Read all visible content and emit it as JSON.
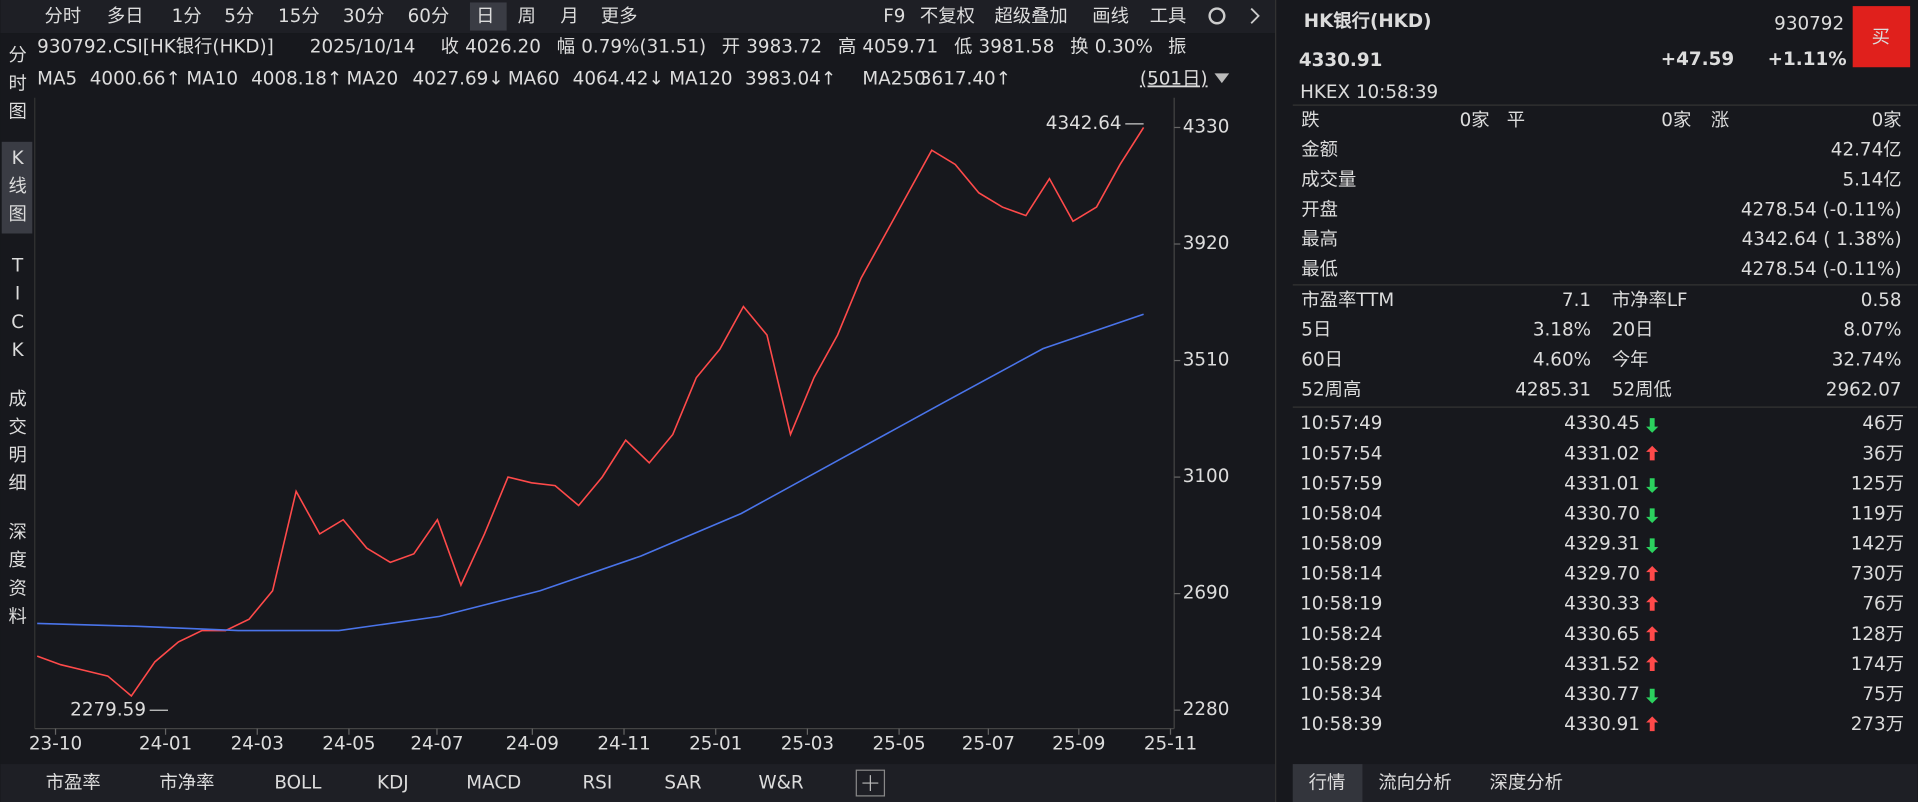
{
  "toolbar": {
    "periods": [
      "分时",
      "多日",
      "1分",
      "5分",
      "15分",
      "30分",
      "60分",
      "日",
      "周",
      "月",
      "更多"
    ],
    "active": "日",
    "tools": [
      "F9",
      "不复权",
      "超级叠加",
      "画线",
      "工具"
    ]
  },
  "side_tabs": [
    "分时图",
    "K线图",
    "TICK",
    "成交明细",
    "深度资料"
  ],
  "info_line": {
    "code": "930792.CSI[HK银行(HKD)]",
    "date": "2025/10/14",
    "items": [
      {
        "label": "收",
        "value": "4026.20",
        "color": "#ff4a4a"
      },
      {
        "label": "幅",
        "value": "0.79%(31.51)",
        "color": "#ff4a4a"
      },
      {
        "label": "开",
        "value": "3983.72",
        "color": "#2bd15e"
      },
      {
        "label": "高",
        "value": "4059.71",
        "color": "#ff4a4a"
      },
      {
        "label": "低",
        "value": "3981.58",
        "color": "#2bd15e"
      },
      {
        "label": "换",
        "value": "0.30%",
        "color": "#e6e6e6"
      },
      {
        "label": "振"
      }
    ]
  },
  "ma_legend": {
    "items": [
      {
        "name": "MA5",
        "value": "4000.66↑",
        "color": "#ff9a1e"
      },
      {
        "name": "MA10",
        "value": "4008.18↑",
        "color": "#e8dc1a"
      },
      {
        "name": "MA20",
        "value": "4027.69↓",
        "color": "#d24ad8"
      },
      {
        "name": "MA60",
        "value": "4064.42↓",
        "color": "#2fb24e"
      },
      {
        "name": "MA120",
        "value": "3983.04↑",
        "color": "#3cc9dc"
      },
      {
        "name": "MA250",
        "value": "3617.40↑",
        "color": "#4a74ea"
      }
    ],
    "days": "(501日)"
  },
  "chart_data": {
    "type": "line",
    "ylim": [
      2215,
      4400
    ],
    "yticks": [
      2280,
      2690,
      3100,
      3510,
      3920,
      4330
    ],
    "x_labels": [
      "23-10",
      "24-01",
      "24-03",
      "24-05",
      "24-07",
      "24-09",
      "24-11",
      "25-01",
      "25-03",
      "25-05",
      "25-07",
      "25-09",
      "25-11"
    ],
    "high_label": 4342.64,
    "low_label": 2279.59,
    "series": [
      {
        "color": "#ff4a4a",
        "values": [
          2470,
          2440,
          2420,
          2400,
          2330,
          2450,
          2520,
          2560,
          2560,
          2600,
          2700,
          3050,
          2900,
          2950,
          2850,
          2800,
          2830,
          2950,
          2720,
          2900,
          3100,
          3080,
          3070,
          3000,
          3100,
          3230,
          3150,
          3250,
          3450,
          3550,
          3700,
          3600,
          3250,
          3450,
          3600,
          3800,
          3950,
          4100,
          4250,
          4200,
          4100,
          4050,
          4020,
          4150,
          4000,
          4050,
          4200,
          4330
        ]
      },
      {
        "color": "#4a74ea",
        "values": [
          2585,
          2575,
          2560,
          2560,
          2610,
          2700,
          2822,
          2972,
          3166,
          3360,
          3552,
          3673
        ]
      }
    ]
  },
  "indicator_tabs": [
    "市盈率",
    "市净率",
    "BOLL",
    "KDJ",
    "MACD",
    "RSI",
    "SAR",
    "W&R"
  ],
  "quote": {
    "name": "HK银行(HKD)",
    "code": "930792",
    "buy": "买",
    "price": "4330.91",
    "change": "+47.59",
    "change_pct": "+1.11%",
    "exchange_time": "HKEX  10:58:39",
    "breadth": [
      {
        "label": "跌",
        "value": "0家",
        "color": "#2bd15e"
      },
      {
        "label": "平",
        "value": "0家",
        "color": "#e6e6e6"
      },
      {
        "label": "涨",
        "value": "0家",
        "color": "#ff4a4a"
      }
    ],
    "stats": [
      {
        "label": "金额",
        "value": "42.74亿",
        "color": "#e6e6e6"
      },
      {
        "label": "成交量",
        "value": "5.14亿",
        "color": "#e6e6e6"
      },
      {
        "label": "开盘",
        "value": "4278.54 (-0.11%)",
        "color": "#2bd15e"
      },
      {
        "label": "最高",
        "value": "4342.64 ( 1.38%)",
        "color": "#ff4a4a"
      },
      {
        "label": "最低",
        "value": "4278.54 (-0.11%)",
        "color": "#2bd15e"
      }
    ],
    "pairs": [
      [
        {
          "label": "市盈率TTM",
          "value": "7.1",
          "color": "#e6e6e6"
        },
        {
          "label": "市净率LF",
          "value": "0.58",
          "color": "#e6e6e6"
        }
      ],
      [
        {
          "label": "5日",
          "value": "3.18%",
          "color": "#ff4a4a"
        },
        {
          "label": "20日",
          "value": "8.07%",
          "color": "#ff4a4a"
        }
      ],
      [
        {
          "label": "60日",
          "value": "4.60%",
          "color": "#ff4a4a"
        },
        {
          "label": "今年",
          "value": "32.74%",
          "color": "#ff4a4a"
        }
      ],
      [
        {
          "label": "52周高",
          "value": "4285.31",
          "color": "#e6e6e6"
        },
        {
          "label": "52周低",
          "value": "2962.07",
          "color": "#e6e6e6"
        }
      ]
    ],
    "trades": [
      {
        "time": "10:57:49",
        "price": "4330.45",
        "dir": "down",
        "volume": "46万"
      },
      {
        "time": "10:57:54",
        "price": "4331.02",
        "dir": "up",
        "volume": "36万"
      },
      {
        "time": "10:57:59",
        "price": "4331.01",
        "dir": "down",
        "volume": "125万"
      },
      {
        "time": "10:58:04",
        "price": "4330.70",
        "dir": "down",
        "volume": "119万"
      },
      {
        "time": "10:58:09",
        "price": "4329.31",
        "dir": "down",
        "volume": "142万"
      },
      {
        "time": "10:58:14",
        "price": "4329.70",
        "dir": "up",
        "volume": "730万"
      },
      {
        "time": "10:58:19",
        "price": "4330.33",
        "dir": "up",
        "volume": "76万"
      },
      {
        "time": "10:58:24",
        "price": "4330.65",
        "dir": "up",
        "volume": "128万"
      },
      {
        "time": "10:58:29",
        "price": "4331.52",
        "dir": "up",
        "volume": "174万"
      },
      {
        "time": "10:58:34",
        "price": "4330.77",
        "dir": "down",
        "volume": "75万"
      },
      {
        "time": "10:58:39",
        "price": "4330.91",
        "dir": "up",
        "volume": "273万"
      }
    ],
    "tabs": [
      "行情",
      "流向分析",
      "深度分析"
    ]
  }
}
